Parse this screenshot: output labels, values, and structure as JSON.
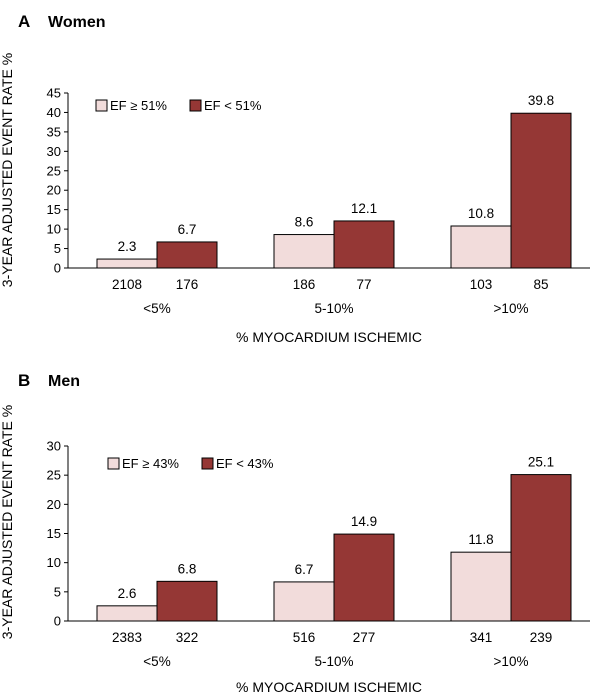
{
  "chart_data": [
    {
      "type": "bar",
      "panel_letter": "A",
      "title": "Women",
      "ylabel": "3-YEAR ADJUSTED EVENT RATE %",
      "xlabel": "% MYOCARDIUM ISCHEMIC",
      "ylim": [
        0,
        45
      ],
      "yticks": [
        "0",
        "5",
        "10",
        "15",
        "20",
        "25",
        "30",
        "35",
        "40",
        "45"
      ],
      "categories": [
        "<5%",
        "5-10%",
        ">10%"
      ],
      "legend_position": "top-left",
      "series": [
        {
          "name": "EF ≥ 51%",
          "color": "#f2dcdb",
          "values": [
            2.3,
            8.6,
            10.8
          ],
          "value_labels": [
            "2.3",
            "8.6",
            "10.8"
          ],
          "counts": [
            "2108",
            "186",
            "103"
          ]
        },
        {
          "name": "EF < 51%",
          "color": "#953735",
          "values": [
            6.7,
            12.1,
            39.8
          ],
          "value_labels": [
            "6.7",
            "12.1",
            "39.8"
          ],
          "counts": [
            "176",
            "77",
            "85"
          ]
        }
      ]
    },
    {
      "type": "bar",
      "panel_letter": "B",
      "title": "Men",
      "ylabel": "3-YEAR ADJUSTED EVENT RATE %",
      "xlabel": "% MYOCARDIUM ISCHEMIC",
      "ylim": [
        0,
        30
      ],
      "yticks": [
        "0",
        "5",
        "10",
        "15",
        "20",
        "25",
        "30"
      ],
      "categories": [
        "<5%",
        "5-10%",
        ">10%"
      ],
      "legend_position": "top-left",
      "series": [
        {
          "name": "EF ≥ 43%",
          "color": "#f2dcdb",
          "values": [
            2.6,
            6.7,
            11.8
          ],
          "value_labels": [
            "2.6",
            "6.7",
            "11.8"
          ],
          "counts": [
            "2383",
            "516",
            "341"
          ]
        },
        {
          "name": "EF < 43%",
          "color": "#953735",
          "values": [
            6.8,
            14.9,
            25.1
          ],
          "value_labels": [
            "6.8",
            "14.9",
            "25.1"
          ],
          "counts": [
            "322",
            "277",
            "239"
          ]
        }
      ]
    }
  ]
}
